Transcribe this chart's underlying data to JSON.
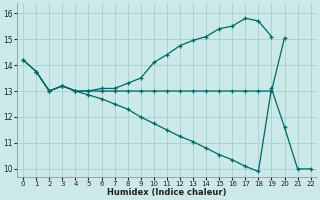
{
  "xlabel": "Humidex (Indice chaleur)",
  "ylabel": "",
  "bg_color": "#cce9e9",
  "grid_color": "#aad4d4",
  "line_color": "#006666",
  "xlim": [
    -0.5,
    22.5
  ],
  "ylim": [
    9.7,
    16.4
  ],
  "xticks": [
    0,
    1,
    2,
    3,
    4,
    5,
    6,
    7,
    8,
    9,
    10,
    11,
    12,
    13,
    14,
    15,
    16,
    17,
    18,
    19,
    20,
    21,
    22
  ],
  "yticks": [
    10,
    11,
    12,
    13,
    14,
    15,
    16
  ],
  "curve1_x": [
    0,
    1,
    2,
    3,
    4,
    5,
    6,
    7,
    8,
    9,
    10,
    11,
    12,
    13,
    14,
    15,
    16,
    17,
    18,
    19
  ],
  "curve1_y": [
    14.2,
    13.75,
    13.0,
    13.2,
    13.0,
    13.0,
    13.1,
    13.1,
    13.3,
    13.5,
    14.1,
    14.4,
    14.75,
    14.95,
    15.1,
    15.4,
    15.5,
    15.8,
    15.7,
    15.1
  ],
  "curve2_x": [
    1,
    2,
    3,
    4,
    5,
    6,
    7,
    8,
    9,
    10,
    11,
    12,
    13,
    14,
    15,
    16,
    17,
    18,
    19,
    20
  ],
  "curve2_y": [
    13.75,
    13.0,
    13.2,
    13.0,
    13.0,
    13.0,
    13.0,
    13.0,
    13.0,
    13.0,
    13.0,
    13.0,
    13.0,
    13.0,
    13.0,
    13.0,
    13.0,
    13.0,
    13.0,
    15.05
  ],
  "curve3_x": [
    0,
    1,
    2,
    3,
    4,
    5,
    6,
    7,
    8,
    9,
    10,
    11,
    12,
    13,
    14,
    15,
    16,
    17,
    18,
    19,
    20,
    21,
    22
  ],
  "curve3_y": [
    14.2,
    13.75,
    13.0,
    13.2,
    13.0,
    12.85,
    12.7,
    12.5,
    12.3,
    12.0,
    11.75,
    11.5,
    11.25,
    11.05,
    10.8,
    10.55,
    10.35,
    10.1,
    9.9,
    13.1,
    11.6,
    10.0,
    10.0
  ]
}
